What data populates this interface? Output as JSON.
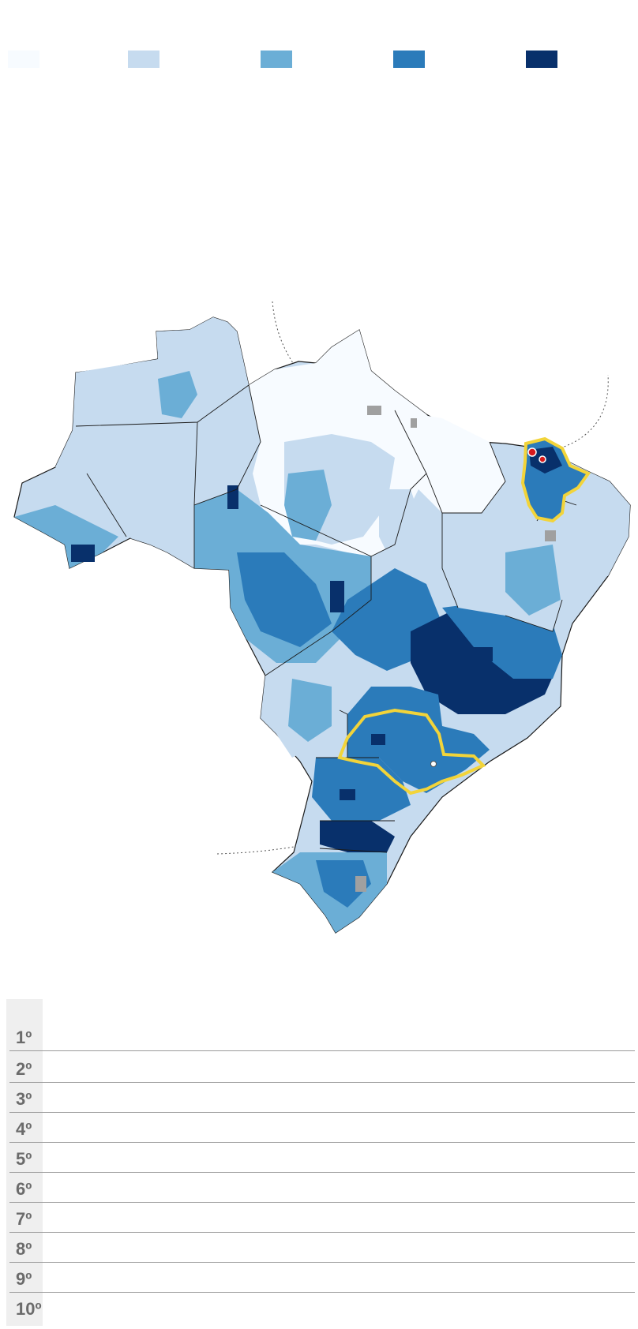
{
  "legend": {
    "colors": [
      "#f7fbff",
      "#c6dbef",
      "#6baed6",
      "#2b7bba",
      "#08306b"
    ]
  },
  "map": {
    "highlight_color": "#f2d43a",
    "border_color": "#1a1a1a",
    "no_data_color": "#a0a0a0",
    "marker_color": "#d7191c",
    "highlighted_states": [
      "Ceará",
      "São Paulo"
    ]
  },
  "ranking": {
    "positions": [
      "1º",
      "2º",
      "3º",
      "4º",
      "5º",
      "6º",
      "7º",
      "8º",
      "9º",
      "10º"
    ]
  }
}
